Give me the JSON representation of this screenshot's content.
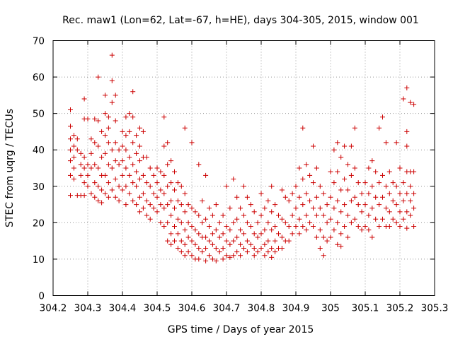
{
  "chart_data": {
    "type": "scatter",
    "title": "Rec. maw1 (Lon=62, Lat=-67, h=HE), days 304-305, 2015, window 001",
    "xlabel": "GPS time / Days of year 2015",
    "ylabel": "STEC from uqrg / TECUs",
    "xlim": [
      304.2,
      305.3
    ],
    "ylim": [
      0,
      70
    ],
    "xticks": [
      "304.2",
      "304.3",
      "304.4",
      "304.5",
      "304.6",
      "304.7",
      "304.8",
      "304.9",
      "305",
      "305.1",
      "305.2",
      "305.3"
    ],
    "yticks": [
      "0",
      "10",
      "20",
      "30",
      "40",
      "50",
      "60",
      "70"
    ],
    "grid": true,
    "marker": "plus",
    "color": "#cc0000",
    "points": [
      [
        304.25,
        51
      ],
      [
        304.25,
        46.5
      ],
      [
        304.25,
        43
      ],
      [
        304.25,
        40
      ],
      [
        304.25,
        37
      ],
      [
        304.25,
        33
      ],
      [
        304.25,
        27.5
      ],
      [
        304.26,
        44
      ],
      [
        304.26,
        41
      ],
      [
        304.26,
        38
      ],
      [
        304.26,
        35
      ],
      [
        304.26,
        32
      ],
      [
        304.27,
        43
      ],
      [
        304.27,
        40
      ],
      [
        304.27,
        27.5
      ],
      [
        304.28,
        39
      ],
      [
        304.28,
        36
      ],
      [
        304.28,
        33
      ],
      [
        304.28,
        27.5
      ],
      [
        304.29,
        54
      ],
      [
        304.29,
        48.5
      ],
      [
        304.29,
        38
      ],
      [
        304.29,
        35
      ],
      [
        304.29,
        31
      ],
      [
        304.29,
        27.5
      ],
      [
        304.3,
        48.5
      ],
      [
        304.3,
        36
      ],
      [
        304.3,
        33
      ],
      [
        304.3,
        30
      ],
      [
        304.31,
        43
      ],
      [
        304.31,
        39
      ],
      [
        304.31,
        35
      ],
      [
        304.31,
        28
      ],
      [
        304.32,
        48.5
      ],
      [
        304.32,
        42
      ],
      [
        304.32,
        36
      ],
      [
        304.32,
        31
      ],
      [
        304.32,
        27
      ],
      [
        304.33,
        60
      ],
      [
        304.33,
        48
      ],
      [
        304.33,
        41
      ],
      [
        304.33,
        35
      ],
      [
        304.33,
        30
      ],
      [
        304.33,
        26
      ],
      [
        304.34,
        45
      ],
      [
        304.34,
        38
      ],
      [
        304.34,
        33
      ],
      [
        304.34,
        29
      ],
      [
        304.34,
        25.5
      ],
      [
        304.35,
        55
      ],
      [
        304.35,
        50
      ],
      [
        304.35,
        44
      ],
      [
        304.35,
        39
      ],
      [
        304.35,
        33
      ],
      [
        304.35,
        28
      ],
      [
        304.36,
        49
      ],
      [
        304.36,
        46
      ],
      [
        304.36,
        42
      ],
      [
        304.36,
        36
      ],
      [
        304.36,
        31
      ],
      [
        304.36,
        27
      ],
      [
        304.37,
        66
      ],
      [
        304.37,
        59
      ],
      [
        304.37,
        53
      ],
      [
        304.37,
        40
      ],
      [
        304.37,
        35
      ],
      [
        304.37,
        29
      ],
      [
        304.38,
        55
      ],
      [
        304.38,
        48
      ],
      [
        304.38,
        42
      ],
      [
        304.38,
        37
      ],
      [
        304.38,
        32
      ],
      [
        304.38,
        27
      ],
      [
        304.39,
        40
      ],
      [
        304.39,
        36
      ],
      [
        304.39,
        30
      ],
      [
        304.39,
        26
      ],
      [
        304.4,
        45
      ],
      [
        304.4,
        41
      ],
      [
        304.4,
        37
      ],
      [
        304.4,
        33
      ],
      [
        304.4,
        29
      ],
      [
        304.41,
        49
      ],
      [
        304.41,
        44
      ],
      [
        304.41,
        40
      ],
      [
        304.41,
        35
      ],
      [
        304.41,
        30
      ],
      [
        304.41,
        25
      ],
      [
        304.42,
        50
      ],
      [
        304.42,
        45
      ],
      [
        304.42,
        38
      ],
      [
        304.42,
        33
      ],
      [
        304.42,
        28
      ],
      [
        304.43,
        56
      ],
      [
        304.43,
        49
      ],
      [
        304.43,
        42
      ],
      [
        304.43,
        36
      ],
      [
        304.43,
        31
      ],
      [
        304.43,
        26
      ],
      [
        304.44,
        44
      ],
      [
        304.44,
        39
      ],
      [
        304.44,
        34
      ],
      [
        304.44,
        30
      ],
      [
        304.44,
        25
      ],
      [
        304.45,
        46
      ],
      [
        304.45,
        41
      ],
      [
        304.45,
        37
      ],
      [
        304.45,
        32
      ],
      [
        304.45,
        27
      ],
      [
        304.45,
        23
      ],
      [
        304.46,
        45
      ],
      [
        304.46,
        38
      ],
      [
        304.46,
        33
      ],
      [
        304.46,
        28
      ],
      [
        304.46,
        24
      ],
      [
        304.47,
        38
      ],
      [
        304.47,
        31
      ],
      [
        304.47,
        26
      ],
      [
        304.47,
        22
      ],
      [
        304.48,
        35
      ],
      [
        304.48,
        30
      ],
      [
        304.48,
        25
      ],
      [
        304.48,
        21
      ],
      [
        304.49,
        33
      ],
      [
        304.49,
        28
      ],
      [
        304.49,
        24
      ],
      [
        304.5,
        35
      ],
      [
        304.5,
        31
      ],
      [
        304.5,
        27
      ],
      [
        304.5,
        23
      ],
      [
        304.51,
        34
      ],
      [
        304.51,
        29
      ],
      [
        304.51,
        25
      ],
      [
        304.51,
        20
      ],
      [
        304.52,
        49
      ],
      [
        304.52,
        41
      ],
      [
        304.52,
        33
      ],
      [
        304.52,
        28
      ],
      [
        304.52,
        24
      ],
      [
        304.52,
        19
      ],
      [
        304.53,
        42
      ],
      [
        304.53,
        36
      ],
      [
        304.53,
        30
      ],
      [
        304.53,
        25
      ],
      [
        304.53,
        20
      ],
      [
        304.53,
        15
      ],
      [
        304.54,
        37
      ],
      [
        304.54,
        31
      ],
      [
        304.54,
        26
      ],
      [
        304.54,
        22
      ],
      [
        304.54,
        17
      ],
      [
        304.54,
        14
      ],
      [
        304.55,
        34
      ],
      [
        304.55,
        29
      ],
      [
        304.55,
        24
      ],
      [
        304.55,
        19
      ],
      [
        304.55,
        15
      ],
      [
        304.56,
        31
      ],
      [
        304.56,
        26
      ],
      [
        304.56,
        21
      ],
      [
        304.56,
        17
      ],
      [
        304.56,
        13
      ],
      [
        304.57,
        30
      ],
      [
        304.57,
        25
      ],
      [
        304.57,
        20
      ],
      [
        304.57,
        15
      ],
      [
        304.57,
        12
      ],
      [
        304.58,
        46
      ],
      [
        304.58,
        28
      ],
      [
        304.58,
        23
      ],
      [
        304.58,
        18
      ],
      [
        304.58,
        14
      ],
      [
        304.58,
        11
      ],
      [
        304.59,
        25
      ],
      [
        304.59,
        20
      ],
      [
        304.59,
        16
      ],
      [
        304.59,
        12
      ],
      [
        304.6,
        42
      ],
      [
        304.6,
        24
      ],
      [
        304.6,
        19
      ],
      [
        304.6,
        15
      ],
      [
        304.6,
        11
      ],
      [
        304.61,
        23
      ],
      [
        304.61,
        18
      ],
      [
        304.61,
        14
      ],
      [
        304.61,
        10
      ],
      [
        304.62,
        36
      ],
      [
        304.62,
        22
      ],
      [
        304.62,
        17
      ],
      [
        304.62,
        13
      ],
      [
        304.62,
        10
      ],
      [
        304.63,
        26
      ],
      [
        304.63,
        20
      ],
      [
        304.63,
        16
      ],
      [
        304.63,
        12
      ],
      [
        304.64,
        33
      ],
      [
        304.64,
        21
      ],
      [
        304.64,
        16
      ],
      [
        304.64,
        13
      ],
      [
        304.64,
        9.5
      ],
      [
        304.65,
        24
      ],
      [
        304.65,
        19
      ],
      [
        304.65,
        15
      ],
      [
        304.65,
        11
      ],
      [
        304.66,
        22
      ],
      [
        304.66,
        17
      ],
      [
        304.66,
        14
      ],
      [
        304.66,
        10
      ],
      [
        304.67,
        25
      ],
      [
        304.67,
        18
      ],
      [
        304.67,
        13
      ],
      [
        304.67,
        9.5
      ],
      [
        304.68,
        20
      ],
      [
        304.68,
        16
      ],
      [
        304.68,
        12
      ],
      [
        304.69,
        22
      ],
      [
        304.69,
        17
      ],
      [
        304.69,
        13
      ],
      [
        304.69,
        10
      ],
      [
        304.7,
        30
      ],
      [
        304.7,
        19
      ],
      [
        304.7,
        15
      ],
      [
        304.7,
        11
      ],
      [
        304.71,
        24
      ],
      [
        304.71,
        18
      ],
      [
        304.71,
        14
      ],
      [
        304.71,
        10.5
      ],
      [
        304.72,
        32
      ],
      [
        304.72,
        20
      ],
      [
        304.72,
        15
      ],
      [
        304.72,
        11
      ],
      [
        304.73,
        27
      ],
      [
        304.73,
        21
      ],
      [
        304.73,
        16
      ],
      [
        304.73,
        12
      ],
      [
        304.74,
        24
      ],
      [
        304.74,
        18
      ],
      [
        304.74,
        14
      ],
      [
        304.74,
        11
      ],
      [
        304.75,
        30
      ],
      [
        304.75,
        22
      ],
      [
        304.75,
        17
      ],
      [
        304.75,
        13
      ],
      [
        304.76,
        27
      ],
      [
        304.76,
        20
      ],
      [
        304.76,
        15
      ],
      [
        304.76,
        12
      ],
      [
        304.77,
        25
      ],
      [
        304.77,
        19
      ],
      [
        304.77,
        14
      ],
      [
        304.78,
        23
      ],
      [
        304.78,
        17
      ],
      [
        304.78,
        13
      ],
      [
        304.78,
        11
      ],
      [
        304.79,
        20
      ],
      [
        304.79,
        16
      ],
      [
        304.79,
        12
      ],
      [
        304.8,
        28
      ],
      [
        304.8,
        22
      ],
      [
        304.8,
        17
      ],
      [
        304.8,
        13
      ],
      [
        304.81,
        24
      ],
      [
        304.81,
        18
      ],
      [
        304.81,
        14
      ],
      [
        304.81,
        11
      ],
      [
        304.82,
        26
      ],
      [
        304.82,
        20
      ],
      [
        304.82,
        15
      ],
      [
        304.82,
        12
      ],
      [
        304.83,
        30
      ],
      [
        304.83,
        23
      ],
      [
        304.83,
        18
      ],
      [
        304.83,
        13
      ],
      [
        304.83,
        10.5
      ],
      [
        304.84,
        25
      ],
      [
        304.84,
        19
      ],
      [
        304.84,
        15
      ],
      [
        304.84,
        12
      ],
      [
        304.85,
        22
      ],
      [
        304.85,
        17
      ],
      [
        304.85,
        13
      ],
      [
        304.86,
        29
      ],
      [
        304.86,
        21
      ],
      [
        304.86,
        16
      ],
      [
        304.86,
        13
      ],
      [
        304.87,
        27
      ],
      [
        304.87,
        20
      ],
      [
        304.87,
        15
      ],
      [
        304.88,
        26
      ],
      [
        304.88,
        19
      ],
      [
        304.88,
        15
      ],
      [
        304.89,
        28
      ],
      [
        304.89,
        22
      ],
      [
        304.89,
        17
      ],
      [
        304.9,
        30
      ],
      [
        304.9,
        24
      ],
      [
        304.9,
        19
      ],
      [
        304.91,
        35
      ],
      [
        304.91,
        27
      ],
      [
        304.91,
        21
      ],
      [
        304.91,
        17
      ],
      [
        304.92,
        46
      ],
      [
        304.92,
        32
      ],
      [
        304.92,
        25
      ],
      [
        304.92,
        19
      ],
      [
        304.93,
        36
      ],
      [
        304.93,
        28
      ],
      [
        304.93,
        22
      ],
      [
        304.93,
        18
      ],
      [
        304.94,
        33
      ],
      [
        304.94,
        26
      ],
      [
        304.94,
        20
      ],
      [
        304.95,
        41
      ],
      [
        304.95,
        31
      ],
      [
        304.95,
        24
      ],
      [
        304.95,
        19
      ],
      [
        304.96,
        35
      ],
      [
        304.96,
        27
      ],
      [
        304.96,
        22
      ],
      [
        304.96,
        16
      ],
      [
        304.97,
        30
      ],
      [
        304.97,
        24
      ],
      [
        304.97,
        18
      ],
      [
        304.97,
        13
      ],
      [
        304.98,
        28
      ],
      [
        304.98,
        22
      ],
      [
        304.98,
        16
      ],
      [
        304.98,
        11
      ],
      [
        304.99,
        25
      ],
      [
        304.99,
        20
      ],
      [
        304.99,
        15
      ],
      [
        305.0,
        34
      ],
      [
        305.0,
        27
      ],
      [
        305.0,
        21
      ],
      [
        305.0,
        16
      ],
      [
        305.01,
        40
      ],
      [
        305.01,
        31
      ],
      [
        305.01,
        24
      ],
      [
        305.01,
        18
      ],
      [
        305.02,
        42
      ],
      [
        305.02,
        34
      ],
      [
        305.02,
        26
      ],
      [
        305.02,
        20
      ],
      [
        305.02,
        14
      ],
      [
        305.03,
        38
      ],
      [
        305.03,
        29
      ],
      [
        305.03,
        23
      ],
      [
        305.03,
        17
      ],
      [
        305.03,
        13.5
      ],
      [
        305.04,
        41
      ],
      [
        305.04,
        32
      ],
      [
        305.04,
        25
      ],
      [
        305.04,
        19
      ],
      [
        305.05,
        36
      ],
      [
        305.05,
        29
      ],
      [
        305.05,
        22
      ],
      [
        305.05,
        16
      ],
      [
        305.06,
        41
      ],
      [
        305.06,
        33
      ],
      [
        305.06,
        26
      ],
      [
        305.06,
        20
      ],
      [
        305.07,
        46
      ],
      [
        305.07,
        35
      ],
      [
        305.07,
        27
      ],
      [
        305.07,
        21
      ],
      [
        305.08,
        31
      ],
      [
        305.08,
        25
      ],
      [
        305.08,
        19
      ],
      [
        305.09,
        28
      ],
      [
        305.09,
        23
      ],
      [
        305.09,
        18
      ],
      [
        305.1,
        31
      ],
      [
        305.1,
        25
      ],
      [
        305.1,
        19
      ],
      [
        305.11,
        35
      ],
      [
        305.11,
        28
      ],
      [
        305.11,
        22
      ],
      [
        305.11,
        18
      ],
      [
        305.12,
        37
      ],
      [
        305.12,
        30
      ],
      [
        305.12,
        24
      ],
      [
        305.12,
        16
      ],
      [
        305.13,
        34
      ],
      [
        305.13,
        27
      ],
      [
        305.13,
        21
      ],
      [
        305.14,
        46
      ],
      [
        305.14,
        31
      ],
      [
        305.14,
        25
      ],
      [
        305.14,
        19
      ],
      [
        305.15,
        49
      ],
      [
        305.15,
        33
      ],
      [
        305.15,
        27
      ],
      [
        305.15,
        21
      ],
      [
        305.16,
        42
      ],
      [
        305.16,
        30
      ],
      [
        305.16,
        24
      ],
      [
        305.16,
        19
      ],
      [
        305.17,
        34
      ],
      [
        305.17,
        28
      ],
      [
        305.17,
        23
      ],
      [
        305.17,
        19
      ],
      [
        305.18,
        31
      ],
      [
        305.18,
        26
      ],
      [
        305.18,
        21
      ],
      [
        305.19,
        42
      ],
      [
        305.19,
        30
      ],
      [
        305.19,
        25
      ],
      [
        305.19,
        20
      ],
      [
        305.2,
        35
      ],
      [
        305.2,
        28
      ],
      [
        305.2,
        23
      ],
      [
        305.2,
        19
      ],
      [
        305.21,
        54
      ],
      [
        305.21,
        31
      ],
      [
        305.21,
        26
      ],
      [
        305.21,
        21
      ],
      [
        305.22,
        57
      ],
      [
        305.22,
        45
      ],
      [
        305.22,
        41
      ],
      [
        305.22,
        34
      ],
      [
        305.22,
        28
      ],
      [
        305.22,
        23
      ],
      [
        305.22,
        18.5
      ],
      [
        305.23,
        53
      ],
      [
        305.23,
        34
      ],
      [
        305.23,
        30
      ],
      [
        305.23,
        26
      ],
      [
        305.23,
        22
      ],
      [
        305.24,
        52.5
      ],
      [
        305.24,
        34
      ],
      [
        305.24,
        28
      ],
      [
        305.24,
        24
      ],
      [
        305.24,
        19
      ]
    ]
  }
}
